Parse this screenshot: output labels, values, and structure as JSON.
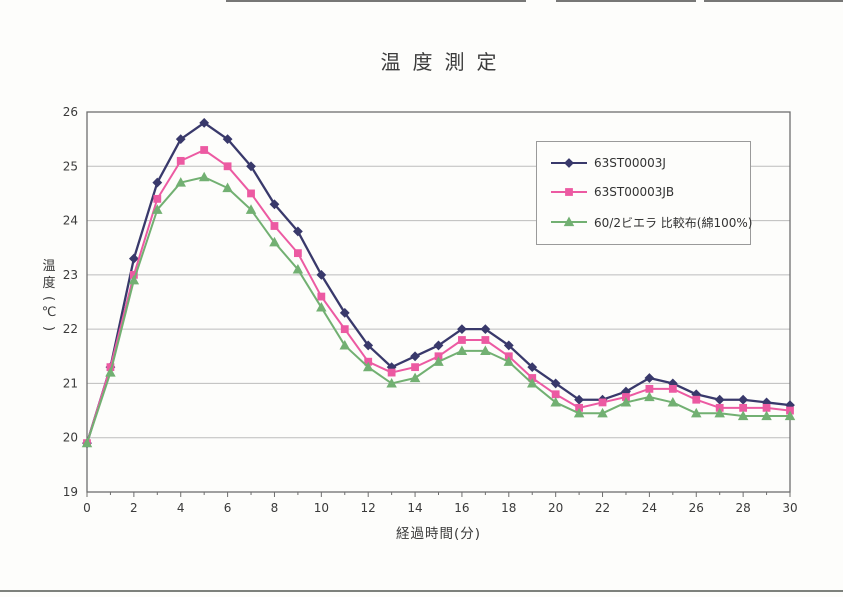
{
  "page": {
    "kind": "scanned chart page"
  },
  "chart_data": {
    "type": "line",
    "title": "温度測定",
    "xlabel": "経過時間(分)",
    "ylabel": "温度(℃)",
    "ylabel_chars": [
      "温",
      "度",
      "(",
      "℃",
      ")"
    ],
    "xlim": [
      0,
      30
    ],
    "ylim": [
      19,
      26
    ],
    "x_ticks": [
      0,
      2,
      4,
      6,
      8,
      10,
      12,
      14,
      16,
      18,
      20,
      22,
      24,
      26,
      28,
      30
    ],
    "x_minor_tick_step": 1,
    "y_ticks": [
      19,
      20,
      21,
      22,
      23,
      24,
      25,
      26
    ],
    "grid": "horizontal",
    "legend_position": "upper-right-inside",
    "x": [
      0,
      1,
      2,
      3,
      4,
      5,
      6,
      7,
      8,
      9,
      10,
      11,
      12,
      13,
      14,
      15,
      16,
      17,
      18,
      19,
      20,
      21,
      22,
      23,
      24,
      25,
      26,
      27,
      28,
      29,
      30
    ],
    "series": [
      {
        "name": "63ST00003J",
        "color": "#39396b",
        "marker": "diamond",
        "values": [
          19.9,
          21.3,
          23.3,
          24.7,
          25.5,
          25.8,
          25.5,
          25.0,
          24.3,
          23.8,
          23.0,
          22.3,
          21.7,
          21.3,
          21.5,
          21.7,
          22.0,
          22.0,
          21.7,
          21.3,
          21.0,
          20.7,
          20.7,
          20.85,
          21.1,
          21.0,
          20.8,
          20.7,
          20.7,
          20.65,
          20.6
        ]
      },
      {
        "name": "63ST00003JB",
        "color": "#ec5aa2",
        "marker": "square",
        "values": [
          19.9,
          21.3,
          23.0,
          24.4,
          25.1,
          25.3,
          25.0,
          24.5,
          23.9,
          23.4,
          22.6,
          22.0,
          21.4,
          21.2,
          21.3,
          21.5,
          21.8,
          21.8,
          21.5,
          21.1,
          20.8,
          20.55,
          20.65,
          20.75,
          20.9,
          20.9,
          20.7,
          20.55,
          20.55,
          20.55,
          20.5
        ]
      },
      {
        "name": "60/2ビエラ 比較布(綿100%)",
        "color": "#72b072",
        "marker": "triangle",
        "values": [
          19.9,
          21.2,
          22.9,
          24.2,
          24.7,
          24.8,
          24.6,
          24.2,
          23.6,
          23.1,
          22.4,
          21.7,
          21.3,
          21.0,
          21.1,
          21.4,
          21.6,
          21.6,
          21.4,
          21.0,
          20.65,
          20.45,
          20.45,
          20.65,
          20.75,
          20.65,
          20.45,
          20.45,
          20.4,
          20.4,
          20.4
        ]
      }
    ],
    "frame_color": "#6e6e6e",
    "gridline_color": "#bdbdbd"
  }
}
